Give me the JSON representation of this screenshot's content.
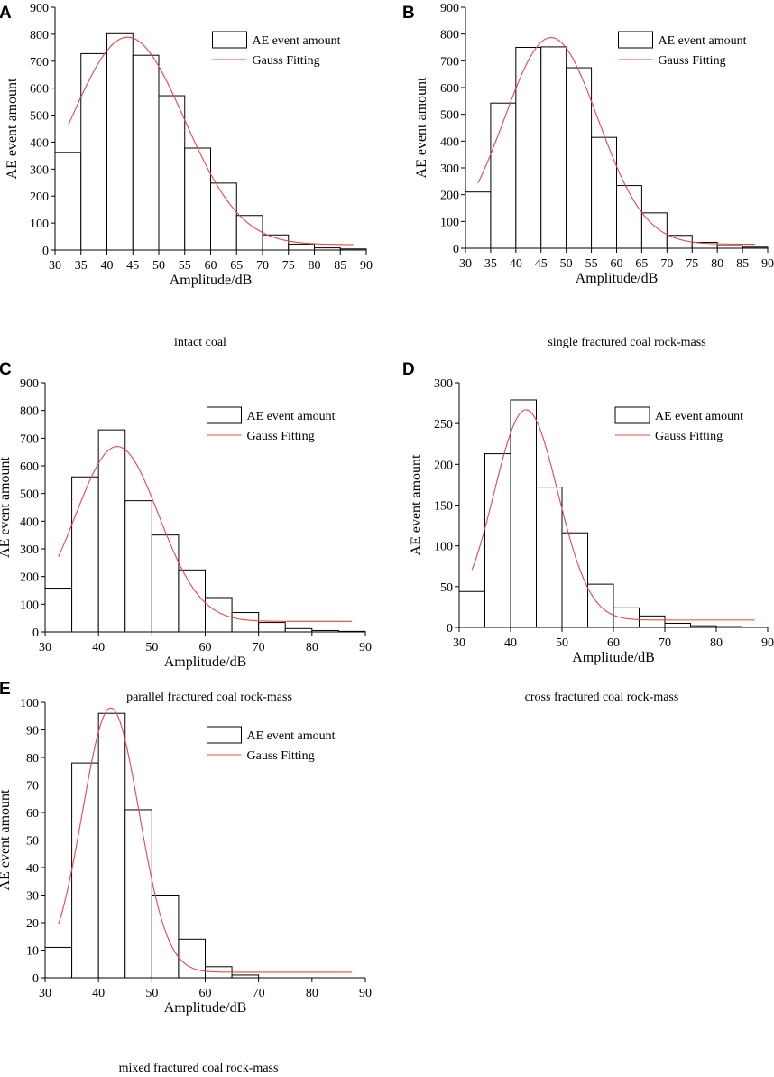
{
  "legend": {
    "bar_label": "AE event amount",
    "fit_label": "Gauss Fitting"
  },
  "colors": {
    "bar_stroke": "#000000",
    "bar_fill": "#ffffff",
    "fit_line": "#e8474a",
    "axis": "#000000"
  },
  "chart_data": [
    {
      "panel": "A",
      "type": "bar",
      "caption": "intact coal",
      "xlabel": "Amplitude/dB",
      "ylabel": "AE event amount",
      "xlim": [
        30,
        90
      ],
      "ylim": [
        0,
        900
      ],
      "xticks": [
        30,
        35,
        40,
        45,
        50,
        55,
        60,
        65,
        70,
        75,
        80,
        85,
        90
      ],
      "yticks": [
        0,
        100,
        200,
        300,
        400,
        500,
        600,
        700,
        800,
        900
      ],
      "bin_width": 5,
      "bin_starts": [
        30,
        35,
        40,
        45,
        50,
        55,
        60,
        65,
        70,
        75,
        80,
        85
      ],
      "values": [
        362,
        728,
        802,
        722,
        572,
        378,
        248,
        128,
        56,
        22,
        8,
        4
      ],
      "fit": {
        "mean": 44,
        "sigma": 10.9,
        "amplitude": 769,
        "offset": 20,
        "x_range": [
          32.5,
          87.5
        ]
      }
    },
    {
      "panel": "B",
      "type": "bar",
      "caption": "single fractured coal rock-mass",
      "xlabel": "Amplitude/dB",
      "ylabel": "AE event amount",
      "xlim": [
        30,
        90
      ],
      "ylim": [
        0,
        900
      ],
      "xticks": [
        30,
        35,
        40,
        45,
        50,
        55,
        60,
        65,
        70,
        75,
        80,
        85,
        90
      ],
      "yticks": [
        0,
        100,
        200,
        300,
        400,
        500,
        600,
        700,
        800,
        900
      ],
      "bin_width": 5,
      "bin_starts": [
        30,
        35,
        40,
        45,
        50,
        55,
        60,
        65,
        70,
        75,
        80,
        85
      ],
      "values": [
        210,
        542,
        750,
        752,
        674,
        414,
        234,
        132,
        48,
        22,
        10,
        4
      ],
      "fit": {
        "mean": 47,
        "sigma": 9.3,
        "amplitude": 772,
        "offset": 15,
        "x_range": [
          32.5,
          87.5
        ]
      }
    },
    {
      "panel": "C",
      "type": "bar",
      "caption": "parallel fractured coal rock-mass",
      "xlabel": "Amplitude/dB",
      "ylabel": "AE event amount",
      "xlim": [
        30,
        90
      ],
      "ylim": [
        0,
        900
      ],
      "xticks": [
        30,
        40,
        50,
        60,
        70,
        80,
        90
      ],
      "yticks": [
        0,
        100,
        200,
        300,
        400,
        500,
        600,
        700,
        800,
        900
      ],
      "bin_width": 5,
      "bin_starts": [
        30,
        35,
        40,
        45,
        50,
        55,
        60,
        65,
        70,
        75,
        80,
        85
      ],
      "values": [
        158,
        560,
        730,
        474,
        350,
        224,
        124,
        70,
        34,
        12,
        5,
        2
      ],
      "fit": {
        "mean": 43.5,
        "sigma": 7.8,
        "amplitude": 632,
        "offset": 38,
        "x_range": [
          32.5,
          87.5
        ]
      }
    },
    {
      "panel": "D",
      "type": "bar",
      "caption": "cross fractured coal rock-mass",
      "xlabel": "Amplitude/dB",
      "ylabel": "AE event amount",
      "xlim": [
        30,
        90
      ],
      "ylim": [
        0,
        300
      ],
      "xticks": [
        30,
        40,
        50,
        60,
        70,
        80,
        90
      ],
      "yticks": [
        0,
        50,
        100,
        150,
        200,
        250,
        300
      ],
      "bin_width": 5,
      "bin_starts": [
        30,
        35,
        40,
        45,
        50,
        55,
        60,
        65,
        70,
        75,
        80,
        85
      ],
      "values": [
        44,
        213,
        279,
        172,
        116,
        53,
        24,
        14,
        5,
        2,
        1,
        0
      ],
      "fit": {
        "mean": 43,
        "sigma": 6.2,
        "amplitude": 258,
        "offset": 9,
        "x_range": [
          32.5,
          87.5
        ]
      }
    },
    {
      "panel": "E",
      "type": "bar",
      "caption": "mixed fractured coal rock-mass",
      "xlabel": "Amplitude/dB",
      "ylabel": "AE event amount",
      "xlim": [
        30,
        90
      ],
      "ylim": [
        0,
        100
      ],
      "xticks": [
        30,
        40,
        50,
        60,
        70,
        80,
        90
      ],
      "yticks": [
        0,
        10,
        20,
        30,
        40,
        50,
        60,
        70,
        80,
        90,
        100
      ],
      "bin_width": 5,
      "bin_starts": [
        30,
        35,
        40,
        45,
        50,
        55,
        60,
        65,
        70
      ],
      "values": [
        11,
        78,
        96,
        61,
        30,
        14,
        4,
        1,
        0
      ],
      "fit": {
        "mean": 42.3,
        "sigma": 5.3,
        "amplitude": 96,
        "offset": 2,
        "x_range": [
          32.5,
          87.5
        ]
      }
    }
  ]
}
